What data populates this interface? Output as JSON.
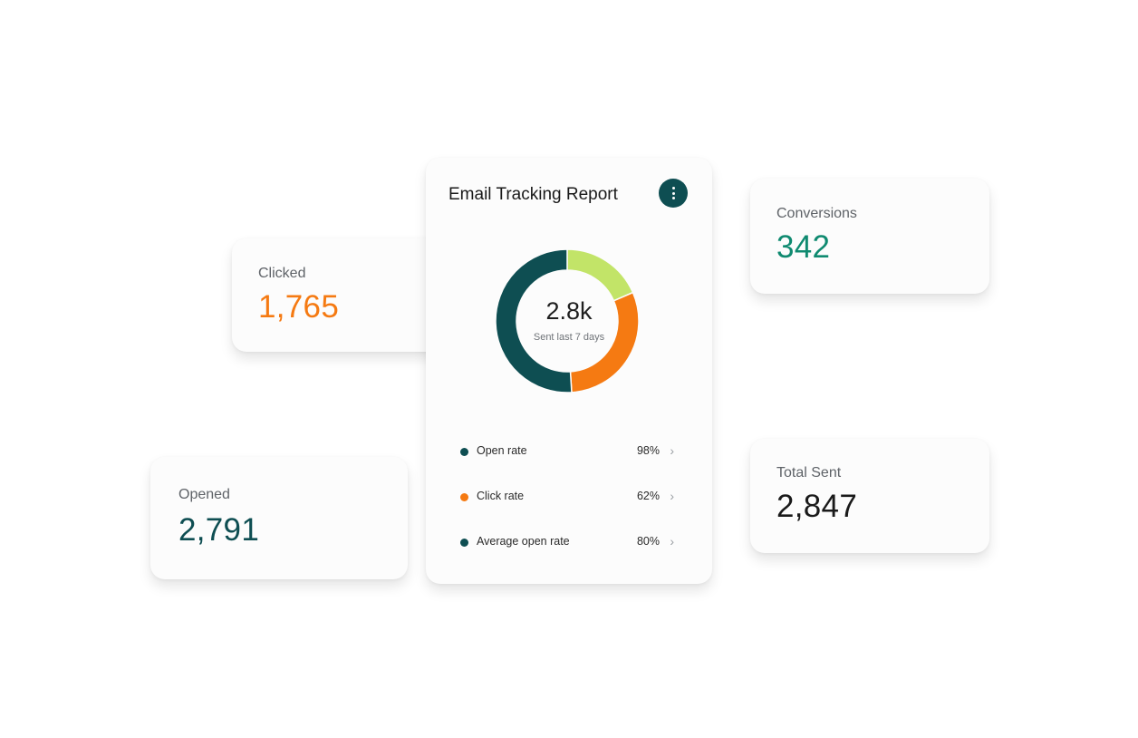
{
  "report": {
    "title": "Email Tracking Report",
    "menu_icon": "more-vertical-icon",
    "center_value": "2.8k",
    "center_caption": "Sent last 7 days",
    "legend": [
      {
        "label": "Open rate",
        "value": "98%",
        "color": "#0e4e52"
      },
      {
        "label": "Click rate",
        "value": "62%",
        "color": "#f57a12"
      },
      {
        "label": "Average open rate",
        "value": "80%",
        "color": "#0e4e52"
      }
    ]
  },
  "chart_data": {
    "type": "pie",
    "donut": true,
    "slices": [
      {
        "value": 0.185,
        "color": "#c2e468"
      },
      {
        "value": 0.305,
        "color": "#f57a12"
      },
      {
        "value": 0.51,
        "color": "#0e4e52"
      }
    ]
  },
  "stats": {
    "clicked": {
      "label": "Clicked",
      "value": "1,765",
      "color": "#f57a12"
    },
    "opened": {
      "label": "Opened",
      "value": "2,791",
      "color": "#0e4e52"
    },
    "conversions": {
      "label": "Conversions",
      "value": "342",
      "color": "#0f8a70"
    },
    "total_sent": {
      "label": "Total Sent",
      "value": "2,847",
      "color": "#1a1a1a"
    }
  }
}
